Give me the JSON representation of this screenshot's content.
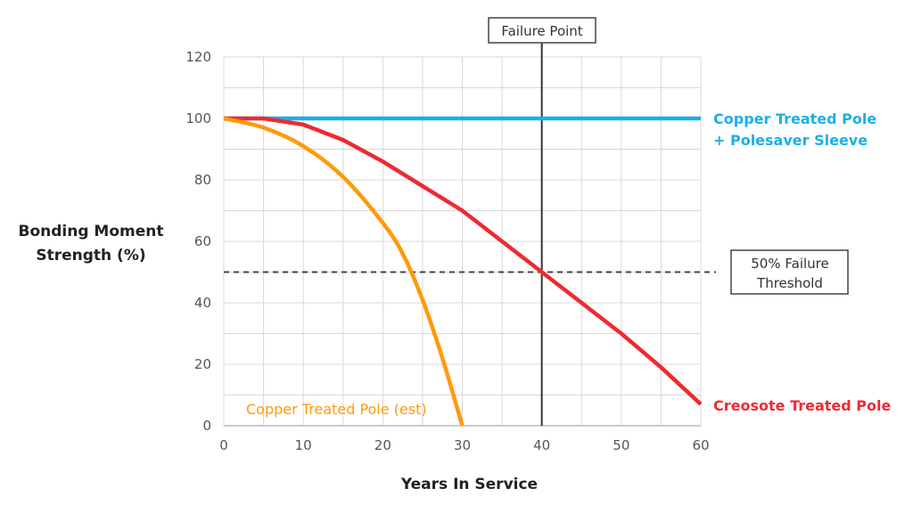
{
  "chart_data": {
    "type": "line",
    "title": "",
    "xlabel": "Years In Service",
    "ylabel_lines": [
      "Bonding Moment",
      "Strength (%)"
    ],
    "xlim": [
      0,
      60
    ],
    "ylim": [
      0,
      120
    ],
    "x_ticks": [
      0,
      10,
      20,
      30,
      40,
      50,
      60
    ],
    "y_ticks": [
      0,
      20,
      40,
      60,
      80,
      100,
      120
    ],
    "grid": true,
    "series": [
      {
        "name": "Copper Treated Pole + Polesaver Sleeve",
        "label_lines": [
          "Copper Treated Pole",
          "+ Polesaver Sleeve"
        ],
        "color": "#1ab0ea",
        "x": [
          0,
          60
        ],
        "y": [
          100,
          100
        ]
      },
      {
        "name": "Creosote Treated Pole",
        "label_lines": [
          "Creosote Treated Pole"
        ],
        "color": "#ee2a32",
        "x": [
          0,
          5,
          10,
          15,
          20,
          25,
          30,
          35,
          40,
          45,
          50,
          55,
          60
        ],
        "y": [
          100,
          100,
          98,
          93,
          86,
          78,
          70,
          60,
          50,
          40,
          30,
          19,
          7
        ]
      },
      {
        "name": "Copper Treated Pole (est)",
        "label_lines": [
          "Copper Treated Pole (est)"
        ],
        "color": "#ff9a0a",
        "x": [
          0,
          5,
          10,
          15,
          20,
          22.5,
          25,
          27.5,
          30
        ],
        "y": [
          100,
          97,
          91,
          81,
          66,
          56,
          41,
          22,
          0
        ]
      }
    ],
    "annotations": {
      "failure_point": {
        "label": "Failure Point",
        "x": 40
      },
      "threshold": {
        "label_lines": [
          "50% Failure",
          "Threshold"
        ],
        "y": 50
      }
    }
  }
}
